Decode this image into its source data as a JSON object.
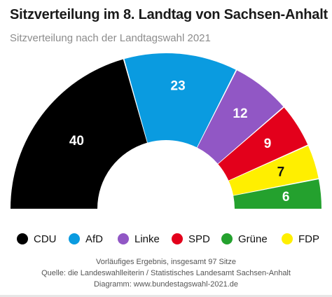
{
  "chart_data": {
    "type": "pie",
    "variant": "semicircle-parliament",
    "title": "Sitzverteilung im 8. Landtag von Sachsen-Anhalt",
    "subtitle": "Sitzverteilung nach der Landtagswahl 2021",
    "total_seats": 97,
    "series": [
      {
        "name": "CDU",
        "value": 40,
        "color": "#000000"
      },
      {
        "name": "AfD",
        "value": 23,
        "color": "#0a9be0"
      },
      {
        "name": "Linke",
        "value": 12,
        "color": "#9157c5"
      },
      {
        "name": "SPD",
        "value": 9,
        "color": "#e3001b"
      },
      {
        "name": "Grüne",
        "value": 6,
        "color": "#24a12e"
      },
      {
        "name": "FDP",
        "value": 7,
        "color": "#ffef00"
      }
    ],
    "slice_order": [
      "CDU",
      "AfD",
      "Linke",
      "SPD",
      "FDP",
      "Grüne"
    ],
    "legend_placement": "bottom"
  },
  "footer": {
    "line1": "Vorläufiges Ergebnis, insgesamt 97 Sitze",
    "line2": "Quelle: die Landeswahlleiterin / Statistisches Landesamt Sachsen-Anhalt",
    "line3": "Diagramm: www.bundestagswahl-2021.de"
  }
}
